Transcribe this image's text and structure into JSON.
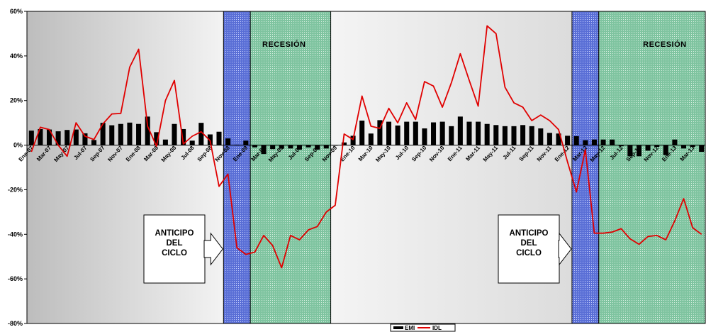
{
  "chart_data": {
    "type": "bar+line",
    "y_axis": {
      "ticks": [
        "60%",
        "40%",
        "20%",
        "0%",
        "-20%",
        "-40%",
        "-60%",
        "-80%"
      ],
      "ylim": [
        -80,
        60
      ],
      "unit": "%"
    },
    "x_tick_labels": [
      "Ene-07",
      "Mar-07",
      "May-07",
      "Jul-07",
      "Sep-07",
      "Nov-07",
      "Ene-08",
      "Mar-08",
      "May-08",
      "Jul-08",
      "Sep-08",
      "Nov-08",
      "Ene-09",
      "Mar-09",
      "May-09",
      "Jul-09",
      "Sep-09",
      "Nov-09",
      "Ene-10",
      "Mar-10",
      "May-10",
      "Jul-10",
      "Sep-10",
      "Nov-10",
      "Ene-11",
      "Mar-11",
      "May-11",
      "Jul-11",
      "Sep-11",
      "Nov-11",
      "Ene-12",
      "Mar-12",
      "May-12",
      "Jul-12",
      "Sep-12",
      "Nov-12",
      "Ene-13",
      "Mar-13"
    ],
    "months": 76,
    "series": [
      {
        "name": "EMI",
        "kind": "bar",
        "color": "#000000",
        "values": [
          6.5,
          7.2,
          7.0,
          6.2,
          6.8,
          7.0,
          5.3,
          2.3,
          10.0,
          8.9,
          9.5,
          10.1,
          9.5,
          12.8,
          5.8,
          2.5,
          9.5,
          7.2,
          2.0,
          10.0,
          4.8,
          6.0,
          3.0,
          0.2,
          2.0,
          -1.0,
          -4.0,
          -1.8,
          -1.6,
          -1.5,
          -2.0,
          -1.0,
          -2.0,
          -1.5,
          -0.2,
          1.2,
          4.2,
          11.0,
          5.2,
          11.2,
          10.5,
          8.8,
          10.5,
          10.5,
          7.5,
          10.2,
          10.5,
          8.5,
          12.8,
          10.5,
          10.5,
          9.5,
          9.0,
          8.5,
          8.5,
          9.0,
          8.5,
          7.5,
          5.5,
          5.2,
          4.2,
          4.0,
          2.2,
          2.5,
          2.5,
          2.5,
          -0.5,
          -5.0,
          -5.0,
          -2.5,
          -0.8,
          -4.5,
          2.5,
          -1.5,
          -0.8,
          -3.0
        ]
      },
      {
        "name": "IDL",
        "kind": "line",
        "color": "#e00000",
        "values": [
          -3.0,
          8.0,
          7.0,
          0.0,
          -5.0,
          10.0,
          4.0,
          2.5,
          9.5,
          14.0,
          14.2,
          35.0,
          43.0,
          8.5,
          -0.5,
          20.0,
          29.0,
          0.5,
          4.0,
          6.0,
          2.0,
          -18.5,
          -13.0,
          -46.0,
          -49.0,
          -48.0,
          -40.5,
          -45.0,
          -55.0,
          -40.5,
          -42.5,
          -38.0,
          -36.5,
          -30.0,
          -27.0,
          5.0,
          2.5,
          22.0,
          8.5,
          7.5,
          16.5,
          10.0,
          19.0,
          11.5,
          28.5,
          26.5,
          17.0,
          28.0,
          41.0,
          29.0,
          17.5,
          53.5,
          50.0,
          26.0,
          19.0,
          17.0,
          11.0,
          13.5,
          11.0,
          7.0,
          -7.5,
          -21.0,
          -2.0,
          -39.5,
          -39.5,
          -39.0,
          -37.5,
          -42.0,
          -44.5,
          -41.0,
          -40.5,
          -42.5,
          -34.0,
          -24.0,
          -37.0,
          -40.0
        ]
      }
    ],
    "shaded_periods": [
      {
        "role": "anticipo",
        "color": "#5a6fd6",
        "start_index": 21.5,
        "end_index": 24.5,
        "label": ""
      },
      {
        "role": "recesion",
        "color": "#7fc4a0",
        "start_index": 24.5,
        "end_index": 33.5,
        "label": "RECESIÓN"
      },
      {
        "role": "anticipo",
        "color": "#5a6fd6",
        "start_index": 60.5,
        "end_index": 63.5,
        "label": ""
      },
      {
        "role": "recesion",
        "color": "#7fc4a0",
        "start_index": 63.5,
        "end_index": 75.5,
        "label": "RECESIÓN"
      }
    ],
    "annotations": [
      {
        "lines": [
          "ANTICIPO",
          "DEL",
          "CICLO"
        ],
        "points_to_period": 0
      },
      {
        "lines": [
          "ANTICIPO",
          "DEL",
          "CICLO"
        ],
        "points_to_period": 2
      }
    ],
    "legend": {
      "position": "bottom-center",
      "entries": [
        "EMI",
        "IDL"
      ]
    },
    "grid": false
  }
}
